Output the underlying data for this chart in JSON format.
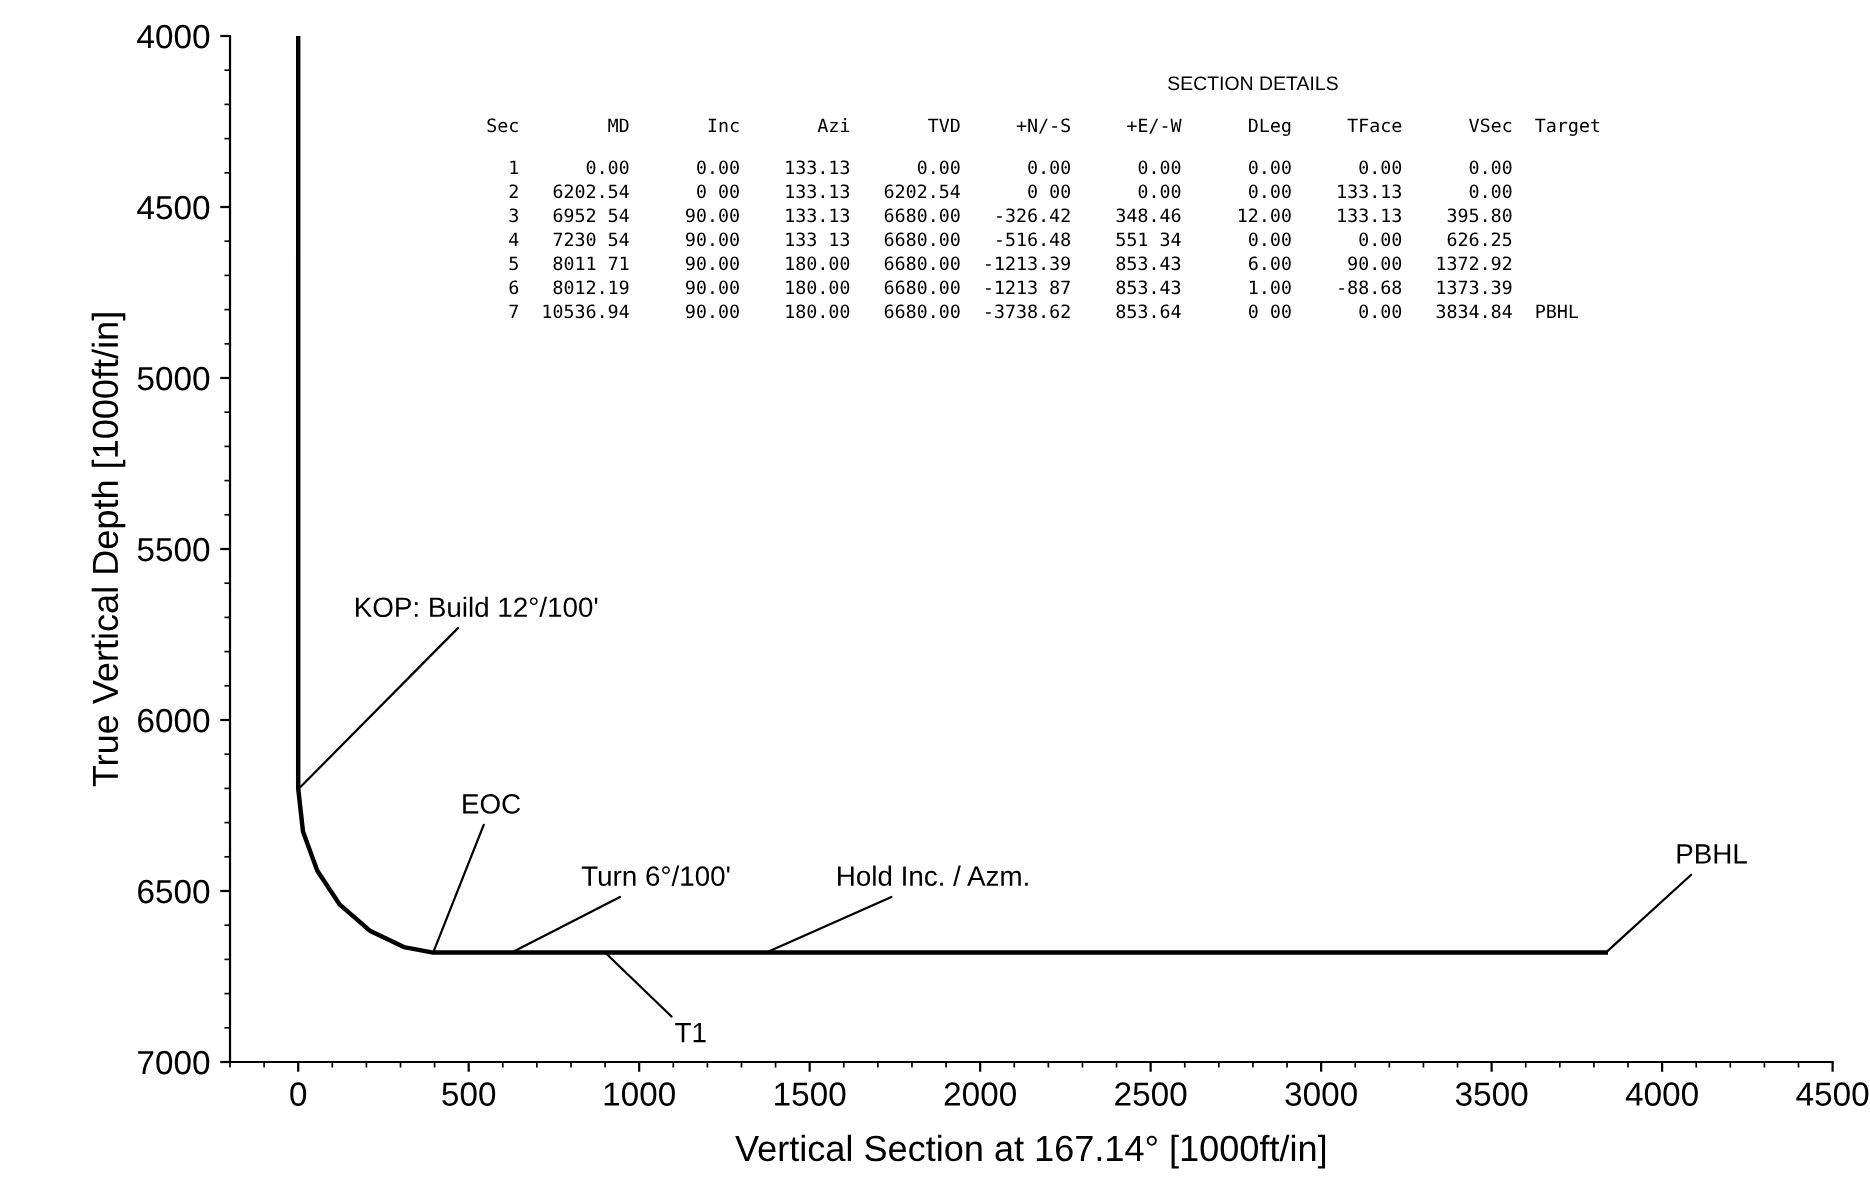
{
  "chart_data": {
    "type": "line",
    "xlabel": "Vertical Section at 167.14° [1000ft/in]",
    "ylabel": "True Vertical Depth [1000ft/in]",
    "x": [
      0,
      0,
      14,
      56,
      122,
      210,
      310,
      395.8,
      626.25,
      1372.92,
      1373.39,
      3834.84
    ],
    "series": [
      {
        "color": "#000000",
        "values": [
          4000,
          6200,
          6326,
          6441,
          6540,
          6616,
          6664,
          6680,
          6680,
          6680,
          6680,
          6680
        ]
      }
    ],
    "xlim": [
      -200,
      4500
    ],
    "ylim": [
      7000,
      4000
    ],
    "xticks": [
      0,
      500,
      1000,
      1500,
      2000,
      2500,
      3000,
      3500,
      4000,
      4500
    ],
    "yticks": [
      4000,
      4500,
      5000,
      5500,
      6000,
      6500,
      7000
    ],
    "grid": false,
    "legend": false,
    "marker": "none",
    "line_style": "solid",
    "annotations": [
      {
        "text": "KOP: Build 12°/100'",
        "x": 0,
        "y": 6202.54
      },
      {
        "text": "EOC",
        "x": 395.8,
        "y": 6680
      },
      {
        "text": "Turn 6°/100'",
        "x": 626.25,
        "y": 6680
      },
      {
        "text": "Hold Inc. / Azm.",
        "x": 1372.92,
        "y": 6680
      },
      {
        "text": "T1",
        "x": 900,
        "y": 6680
      },
      {
        "text": "PBHL",
        "x": 3834.84,
        "y": 6680
      },
      "SECTION DETAILS",
      "Sec        MD       Inc       Azi       TVD     +N/-S     +E/-W      DLeg     TFace      VSec  Target",
      "  1      0.00      0.00    133.13      0.00      0.00      0.00      0.00      0.00      0.00",
      "  2   6202.54      0 00    133.13   6202.54      0 00      0.00      0.00    133.13      0.00",
      "  3   6952 54     90.00    133.13   6680.00   -326.42    348.46     12.00    133.13    395.80",
      "  4   7230 54     90.00    133 13   6680.00   -516.48    551 34      0.00      0.00    626.25",
      "  5   8011 71     90.00    180.00   6680.00  -1213.39    853.43      6.00     90.00   1372.92",
      "  6   8012.19     90.00    180.00   6680.00  -1213 87    853.43      1.00    -88.68   1373.39",
      "  7  10536.94     90.00    180.00   6680.00  -3738.62    853.64      0 00      0.00   3834.84  PBHL"
    ]
  }
}
